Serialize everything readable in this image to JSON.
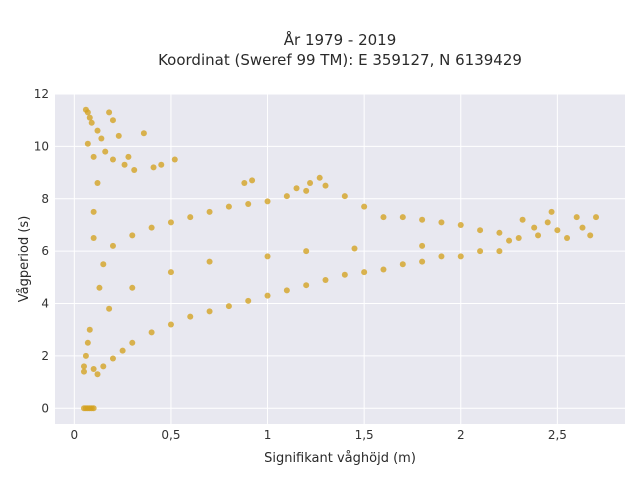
{
  "chart_data": {
    "type": "scatter",
    "title_lines": [
      "År 1979 - 2019",
      "Koordinat (Sweref 99 TM): E 359127, N 6139429"
    ],
    "xlabel": "Signifikant våghöjd (m)",
    "ylabel": "Vågperiod (s)",
    "xlim": [
      -0.1,
      2.85
    ],
    "ylim": [
      -0.6,
      12.0
    ],
    "xticks": [
      0,
      0.5,
      1,
      1.5,
      2,
      2.5
    ],
    "xtick_labels": [
      "0",
      "0,5",
      "1",
      "1,5",
      "2",
      "2,5"
    ],
    "yticks": [
      0,
      2,
      4,
      6,
      8,
      10,
      12
    ],
    "ytick_labels": [
      "0",
      "2",
      "4",
      "6",
      "8",
      "10",
      "12"
    ],
    "grid": true,
    "legend": "none",
    "marker_color": "#D4A21F",
    "plot_background": "#E8E8F0",
    "series": [
      {
        "values": [
          [
            0.05,
            0.0
          ],
          [
            0.06,
            0.0
          ],
          [
            0.07,
            0.0
          ],
          [
            0.08,
            0.0
          ],
          [
            0.09,
            0.0
          ],
          [
            0.1,
            0.0
          ],
          [
            0.06,
            11.4
          ],
          [
            0.07,
            11.3
          ],
          [
            0.08,
            11.1
          ],
          [
            0.18,
            11.3
          ],
          [
            0.2,
            11.0
          ],
          [
            0.09,
            10.9
          ],
          [
            0.12,
            10.6
          ],
          [
            0.14,
            10.3
          ],
          [
            0.36,
            10.5
          ],
          [
            0.23,
            10.4
          ],
          [
            0.07,
            10.1
          ],
          [
            0.16,
            9.8
          ],
          [
            0.1,
            9.6
          ],
          [
            0.2,
            9.5
          ],
          [
            0.26,
            9.3
          ],
          [
            0.31,
            9.1
          ],
          [
            0.41,
            9.2
          ],
          [
            0.52,
            9.5
          ],
          [
            0.05,
            1.4
          ],
          [
            0.05,
            1.6
          ],
          [
            0.06,
            2.0
          ],
          [
            0.07,
            2.5
          ],
          [
            0.08,
            3.0
          ],
          [
            0.1,
            1.5
          ],
          [
            0.12,
            1.3
          ],
          [
            0.15,
            1.6
          ],
          [
            0.2,
            1.9
          ],
          [
            0.25,
            2.2
          ],
          [
            0.3,
            2.5
          ],
          [
            0.4,
            2.9
          ],
          [
            0.5,
            3.2
          ],
          [
            0.6,
            3.5
          ],
          [
            0.7,
            3.7
          ],
          [
            0.8,
            3.9
          ],
          [
            0.9,
            4.1
          ],
          [
            1.0,
            4.3
          ],
          [
            1.1,
            4.5
          ],
          [
            1.2,
            4.7
          ],
          [
            1.3,
            4.9
          ],
          [
            1.4,
            5.1
          ],
          [
            1.5,
            5.2
          ],
          [
            1.6,
            5.3
          ],
          [
            1.7,
            5.5
          ],
          [
            1.8,
            5.6
          ],
          [
            1.9,
            5.8
          ],
          [
            2.0,
            5.8
          ],
          [
            2.1,
            6.0
          ],
          [
            2.2,
            6.0
          ],
          [
            0.15,
            5.5
          ],
          [
            0.2,
            6.2
          ],
          [
            0.3,
            6.6
          ],
          [
            0.4,
            6.9
          ],
          [
            0.5,
            7.1
          ],
          [
            0.6,
            7.3
          ],
          [
            0.7,
            7.5
          ],
          [
            0.8,
            7.7
          ],
          [
            0.9,
            7.8
          ],
          [
            1.0,
            7.9
          ],
          [
            1.1,
            8.1
          ],
          [
            1.2,
            8.3
          ],
          [
            1.3,
            8.5
          ],
          [
            1.4,
            8.1
          ],
          [
            1.5,
            7.7
          ],
          [
            1.6,
            7.3
          ],
          [
            1.7,
            7.3
          ],
          [
            1.8,
            7.2
          ],
          [
            1.9,
            7.1
          ],
          [
            2.0,
            7.0
          ],
          [
            2.1,
            6.8
          ],
          [
            2.2,
            6.7
          ],
          [
            2.3,
            6.5
          ],
          [
            2.4,
            6.6
          ],
          [
            2.5,
            6.8
          ],
          [
            2.55,
            6.5
          ],
          [
            2.6,
            7.3
          ],
          [
            2.63,
            6.9
          ],
          [
            2.67,
            6.6
          ],
          [
            2.7,
            7.3
          ],
          [
            2.47,
            7.5
          ],
          [
            2.45,
            7.1
          ],
          [
            2.38,
            6.9
          ],
          [
            2.32,
            7.2
          ],
          [
            2.25,
            6.4
          ],
          [
            1.27,
            8.8
          ],
          [
            1.22,
            8.6
          ],
          [
            1.15,
            8.4
          ],
          [
            0.92,
            8.7
          ],
          [
            0.88,
            8.6
          ],
          [
            0.45,
            9.3
          ],
          [
            0.28,
            9.6
          ],
          [
            0.12,
            8.6
          ],
          [
            0.1,
            7.5
          ],
          [
            0.1,
            6.5
          ],
          [
            0.13,
            4.6
          ],
          [
            0.18,
            3.8
          ],
          [
            0.3,
            4.6
          ],
          [
            0.5,
            5.2
          ],
          [
            0.7,
            5.6
          ],
          [
            1.0,
            5.8
          ],
          [
            1.2,
            6.0
          ],
          [
            1.45,
            6.1
          ],
          [
            1.8,
            6.2
          ]
        ]
      }
    ]
  }
}
